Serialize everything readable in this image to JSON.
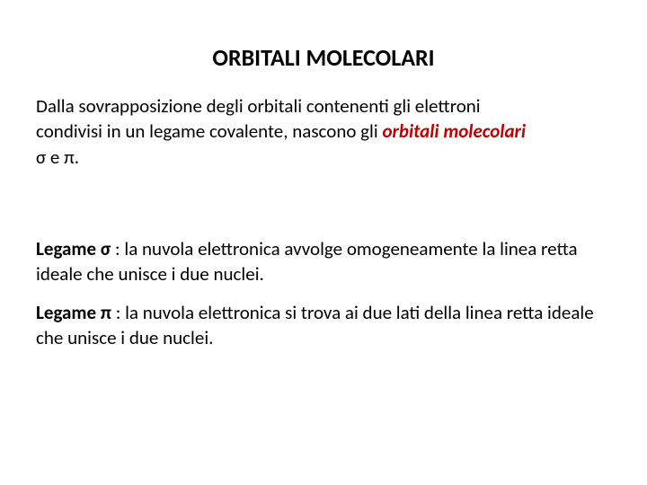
{
  "title": {
    "text": "ORBITALI MOLECOLARI",
    "fontsize": 26,
    "color": "#000000"
  },
  "para1": {
    "line1": "Dalla sovrapposizione degli orbitali contenenti gli elettroni",
    "line2a": "condivisi in un legame covalente, nascono gli ",
    "line2b_highlight": "orbitali molecolari",
    "line3_sigma": "σ",
    "line3_mid": " e ",
    "line3_pi": "π",
    "line3_end": ".",
    "fontsize": 21,
    "highlight_color": "#c00000"
  },
  "para2": {
    "prefix": "Legame ",
    "symbol": "σ",
    "rest": " : la nuvola elettronica avvolge omogeneamente la linea retta ideale che unisce i due nuclei.",
    "fontsize": 21
  },
  "para3": {
    "prefix": "Legame ",
    "symbol": "π",
    "rest": " : la nuvola elettronica si trova ai due lati della linea retta ideale che unisce i due nuclei.",
    "fontsize": 21
  },
  "styles": {
    "background": "#ffffff",
    "text_color": "#000000",
    "title_weight": 700,
    "body_weight": 400
  }
}
